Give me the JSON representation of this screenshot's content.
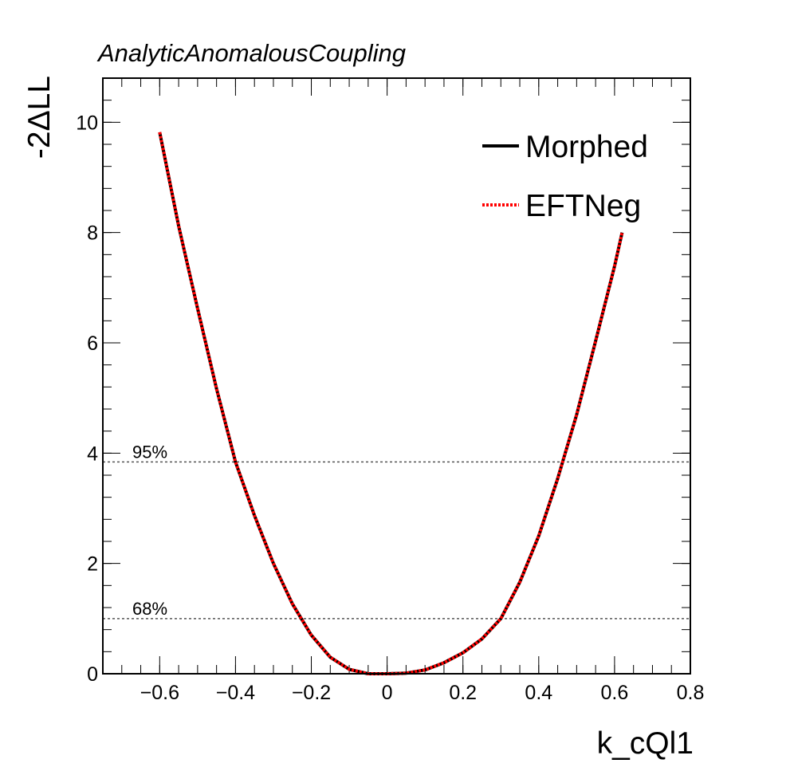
{
  "chart_data": {
    "type": "line",
    "title": "AnalyticAnomalousCoupling",
    "xlabel": "k_cQl1",
    "ylabel": "-2ΔLL",
    "xlim": [
      -0.75,
      0.8
    ],
    "ylim": [
      0,
      10.8
    ],
    "x_ticks": [
      -0.6,
      -0.4,
      -0.2,
      0,
      0.2,
      0.4,
      0.6,
      0.8
    ],
    "x_tick_labels": [
      "−0.6",
      "−0.4",
      "−0.2",
      "0",
      "0.2",
      "0.4",
      "0.6",
      "0.8"
    ],
    "y_ticks": [
      0,
      2,
      4,
      6,
      8,
      10
    ],
    "y_tick_labels": [
      "0",
      "2",
      "4",
      "6",
      "8",
      "10"
    ],
    "grid": false,
    "legend_position": "top-right",
    "reference_lines": [
      {
        "label": "95%",
        "y": 3.84
      },
      {
        "label": "68%",
        "y": 1.0
      }
    ],
    "series": [
      {
        "name": "Morphed",
        "color": "#000000",
        "style": "solid",
        "x": [
          -0.6,
          -0.55,
          -0.5,
          -0.45,
          -0.4,
          -0.35,
          -0.3,
          -0.25,
          -0.2,
          -0.15,
          -0.1,
          -0.05,
          0,
          0.05,
          0.1,
          0.15,
          0.2,
          0.25,
          0.3,
          0.35,
          0.4,
          0.45,
          0.5,
          0.55,
          0.6,
          0.62
        ],
        "y": [
          9.82,
          8.12,
          6.62,
          5.17,
          3.84,
          2.87,
          2.0,
          1.27,
          0.7,
          0.3,
          0.08,
          0.0,
          0.0,
          0.01,
          0.07,
          0.2,
          0.38,
          0.63,
          1.0,
          1.66,
          2.5,
          3.54,
          4.7,
          6.03,
          7.39,
          8.0
        ]
      },
      {
        "name": "EFTNeg",
        "color": "#ff0000",
        "style": "dotted",
        "x": [
          -0.6,
          -0.55,
          -0.5,
          -0.45,
          -0.4,
          -0.35,
          -0.3,
          -0.25,
          -0.2,
          -0.15,
          -0.1,
          -0.05,
          0,
          0.05,
          0.1,
          0.15,
          0.2,
          0.25,
          0.3,
          0.35,
          0.4,
          0.45,
          0.5,
          0.55,
          0.6,
          0.62
        ],
        "y": [
          9.82,
          8.12,
          6.62,
          5.17,
          3.84,
          2.87,
          2.0,
          1.27,
          0.7,
          0.3,
          0.08,
          0.0,
          0.0,
          0.01,
          0.07,
          0.2,
          0.38,
          0.63,
          1.0,
          1.66,
          2.5,
          3.54,
          4.7,
          6.03,
          7.39,
          8.0
        ]
      }
    ]
  }
}
